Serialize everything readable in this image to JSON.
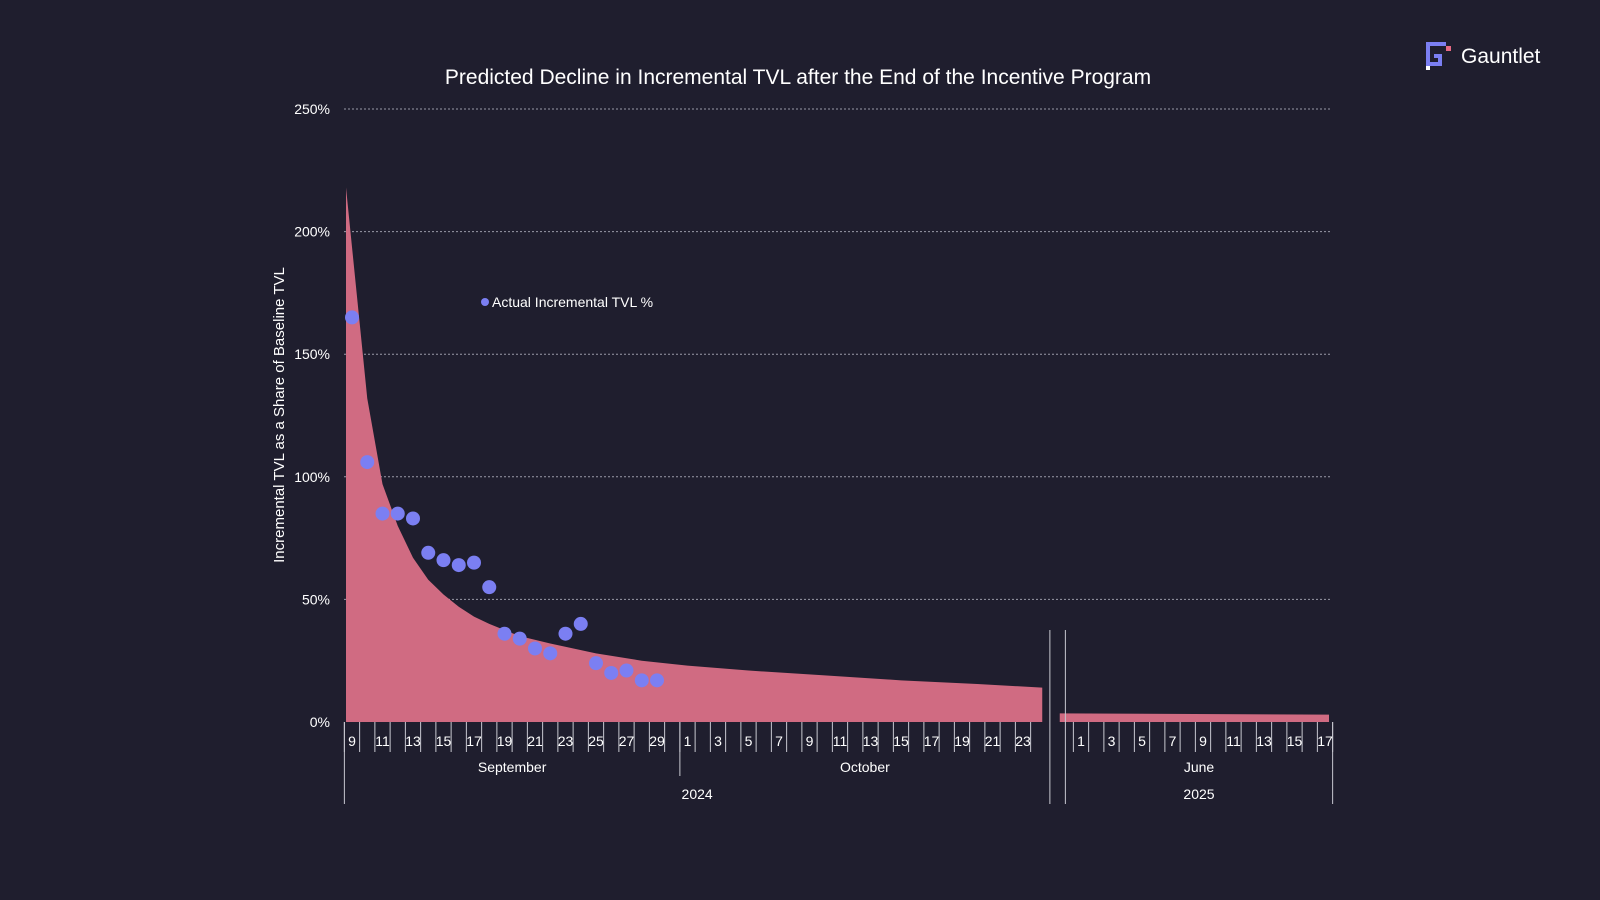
{
  "brand": {
    "name": "Gauntlet",
    "logo_icon": "gauntlet-g-logo",
    "logo_colors": [
      "#7b7ff2",
      "#e86a83"
    ]
  },
  "chart_data": {
    "type": "area",
    "title": "Predicted Decline in Incremental TVL after the End of the Incentive Program",
    "ylabel": "Incremental TVL as a Share of Baseline TVL",
    "xlabel": "",
    "ylim": [
      0,
      250
    ],
    "y_ticks": [
      "0%",
      "50%",
      "100%",
      "150%",
      "200%",
      "250%"
    ],
    "grid": true,
    "colors": {
      "background": "#1f1e2e",
      "area": "#d06b82",
      "points": "#7b7ff2",
      "grid": "#9a9aa8"
    },
    "x_axis": {
      "segments": [
        {
          "year": "2024",
          "months": [
            {
              "name": "September",
              "tick_labels": [
                "9",
                "11",
                "13",
                "15",
                "17",
                "19",
                "21",
                "23",
                "25",
                "27",
                "29"
              ]
            },
            {
              "name": "October",
              "tick_labels": [
                "1",
                "3",
                "5",
                "7",
                "9",
                "11",
                "13",
                "15",
                "17",
                "19",
                "21",
                "23"
              ]
            }
          ]
        },
        {
          "year": "2025",
          "months": [
            {
              "name": "June",
              "tick_labels": [
                "1",
                "3",
                "5",
                "7",
                "9",
                "11",
                "13",
                "15",
                "17"
              ]
            }
          ]
        }
      ]
    },
    "series": [
      {
        "type": "area",
        "segments": [
          {
            "dates": [
              "2024-09-09",
              "2024-09-10",
              "2024-09-11",
              "2024-09-12",
              "2024-09-13",
              "2024-09-14",
              "2024-09-15",
              "2024-09-16",
              "2024-09-17",
              "2024-09-18",
              "2024-09-20",
              "2024-09-22",
              "2024-09-25",
              "2024-09-28",
              "2024-10-01",
              "2024-10-05",
              "2024-10-10",
              "2024-10-15",
              "2024-10-20",
              "2024-10-24"
            ],
            "values": [
              218,
              132,
              97,
              80,
              67,
              58,
              52,
              47,
              43,
              40,
              35,
              32,
              28,
              25,
              23,
              21,
              19,
              17,
              15.5,
              14
            ]
          },
          {
            "dates": [
              "2025-05-31",
              "2025-06-17"
            ],
            "values": [
              3.5,
              3
            ]
          }
        ]
      },
      {
        "type": "scatter",
        "name": "Actual Incremental TVL %",
        "dates": [
          "2024-09-09",
          "2024-09-10",
          "2024-09-11",
          "2024-09-12",
          "2024-09-13",
          "2024-09-14",
          "2024-09-15",
          "2024-09-16",
          "2024-09-17",
          "2024-09-18",
          "2024-09-19",
          "2024-09-20",
          "2024-09-21",
          "2024-09-22",
          "2024-09-23",
          "2024-09-24",
          "2024-09-25",
          "2024-09-26",
          "2024-09-27",
          "2024-09-28",
          "2024-09-29"
        ],
        "values": [
          165,
          106,
          85,
          85,
          83,
          69,
          66,
          64,
          65,
          55,
          36,
          34,
          30,
          28,
          36,
          40,
          24,
          20,
          21,
          17,
          17
        ]
      }
    ],
    "legend": {
      "position": "upper-middle",
      "label": "Actual Incremental TVL %"
    }
  }
}
